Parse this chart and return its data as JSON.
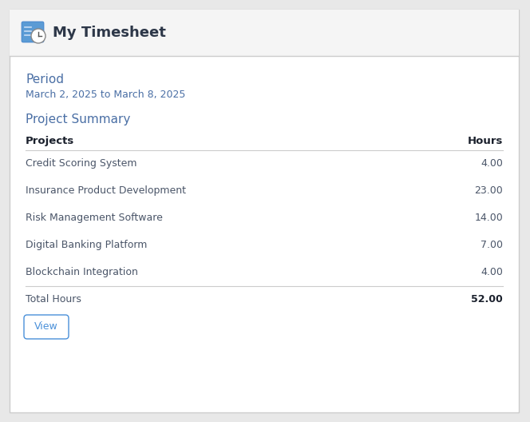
{
  "title": "My Timesheet",
  "period_label": "Period",
  "period_value": "March 2, 2025 to March 8, 2025",
  "section_title": "Project Summary",
  "col_projects": "Projects",
  "col_hours": "Hours",
  "projects": [
    {
      "name": "Credit Scoring System",
      "hours": "4.00"
    },
    {
      "name": "Insurance Product Development",
      "hours": "23.00"
    },
    {
      "name": "Risk Management Software",
      "hours": "14.00"
    },
    {
      "name": "Digital Banking Platform",
      "hours": "7.00"
    },
    {
      "name": "Blockchain Integration",
      "hours": "4.00"
    }
  ],
  "total_label": "Total Hours",
  "total_hours": "52.00",
  "button_label": "View",
  "bg_color": "#e8e8e8",
  "card_color": "#ffffff",
  "header_bg": "#f5f5f5",
  "header_title_color": "#2d3748",
  "period_label_color": "#4a6fa5",
  "period_value_color": "#4a6fa5",
  "section_title_color": "#4a6fa5",
  "col_header_color": "#1a202c",
  "row_text_color": "#4a5568",
  "total_label_color": "#4a5568",
  "total_hours_color": "#1a202c",
  "button_text_color": "#4a90d9",
  "button_border_color": "#4a90d9",
  "divider_color": "#cccccc",
  "header_divider_color": "#cccccc"
}
